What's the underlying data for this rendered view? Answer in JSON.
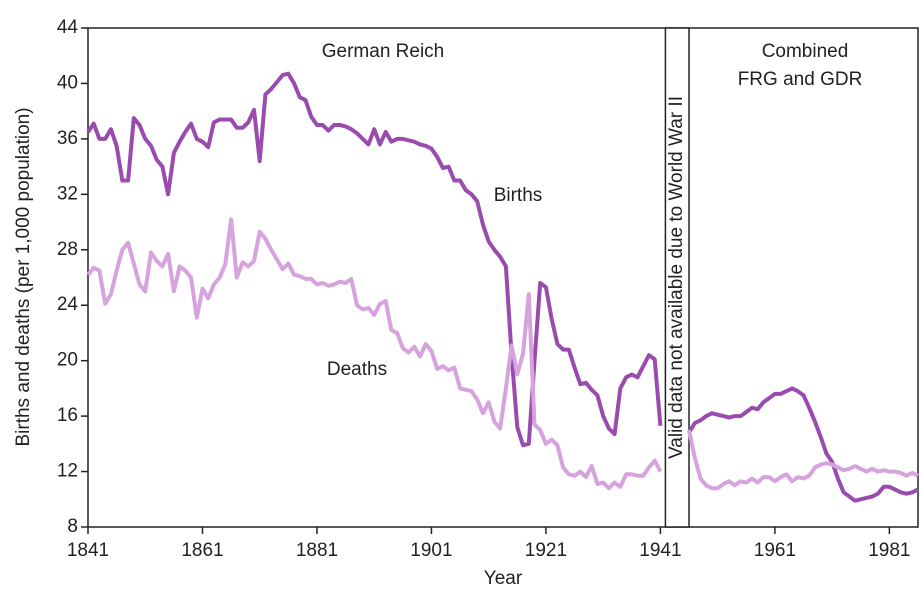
{
  "chart_data": {
    "type": "line",
    "xlabel": "Year",
    "ylabel": "Births and deaths (per 1,000 population)",
    "annotations": [
      "German Reich",
      "Combined",
      "FRG and GDR",
      "Births",
      "Deaths",
      "Valid data not available due to World War II"
    ],
    "x": [
      1841,
      1842,
      1843,
      1844,
      1845,
      1846,
      1847,
      1848,
      1849,
      1850,
      1851,
      1852,
      1853,
      1854,
      1855,
      1856,
      1857,
      1858,
      1859,
      1860,
      1861,
      1862,
      1863,
      1864,
      1865,
      1866,
      1867,
      1868,
      1869,
      1870,
      1871,
      1872,
      1873,
      1874,
      1875,
      1876,
      1877,
      1878,
      1879,
      1880,
      1881,
      1882,
      1883,
      1884,
      1885,
      1886,
      1887,
      1888,
      1889,
      1890,
      1891,
      1892,
      1893,
      1894,
      1895,
      1896,
      1897,
      1898,
      1899,
      1900,
      1901,
      1902,
      1903,
      1904,
      1905,
      1906,
      1907,
      1908,
      1909,
      1910,
      1911,
      1912,
      1913,
      1914,
      1915,
      1916,
      1917,
      1918,
      1919,
      1920,
      1921,
      1922,
      1923,
      1924,
      1925,
      1926,
      1927,
      1928,
      1929,
      1930,
      1931,
      1932,
      1933,
      1934,
      1935,
      1936,
      1937,
      1938,
      1939,
      1940,
      1941,
      1942,
      1943,
      1944,
      1945,
      1946,
      1947,
      1948,
      1949,
      1950,
      1951,
      1952,
      1953,
      1954,
      1955,
      1956,
      1957,
      1958,
      1959,
      1960,
      1961,
      1962,
      1963,
      1964,
      1965,
      1966,
      1967,
      1968,
      1969,
      1970,
      1971,
      1972,
      1973,
      1974,
      1975,
      1976,
      1977,
      1978,
      1979,
      1980,
      1981,
      1982,
      1983,
      1984,
      1985,
      1986
    ],
    "series": [
      {
        "name": "Births",
        "color": "#9a4cae",
        "values": [
          36.5,
          37.1,
          36,
          36,
          36.7,
          35.5,
          33,
          33,
          37.5,
          37,
          36,
          35.5,
          34.5,
          34,
          32,
          35,
          35.8,
          36.5,
          37.1,
          36,
          35.8,
          35.4,
          37.2,
          37.4,
          37.4,
          37.4,
          36.8,
          36.8,
          37.2,
          38.1,
          34.4,
          39.2,
          39.6,
          40.1,
          40.6,
          40.7,
          40,
          39,
          38.8,
          37.6,
          37,
          37,
          36.6,
          37,
          37,
          36.9,
          36.7,
          36.4,
          36,
          35.6,
          36.7,
          35.6,
          36.5,
          35.8,
          36,
          36,
          35.9,
          35.8,
          35.6,
          35.5,
          35.3,
          34.7,
          33.9,
          34,
          33,
          33,
          32.3,
          32,
          31.5,
          29.8,
          28.6,
          28,
          27.5,
          26.8,
          20.4,
          15.2,
          13.9,
          14,
          20,
          25.6,
          25.3,
          23,
          21.2,
          20.8,
          20.8,
          19.5,
          18.3,
          18.4,
          17.9,
          17.5,
          16,
          15.1,
          14.7,
          18,
          18.8,
          19,
          18.8,
          19.6,
          20.4,
          20.1,
          15.3,
          null,
          null,
          null,
          null,
          14.8,
          15.5,
          15.7,
          16,
          16.2,
          16.1,
          16,
          15.9,
          16,
          16,
          16.3,
          16.6,
          16.5,
          17,
          17.3,
          17.6,
          17.6,
          17.8,
          18,
          17.8,
          17.5,
          16.6,
          15.6,
          14.5,
          13.3,
          12.7,
          11.5,
          10.5,
          10.2,
          9.9,
          10,
          10.1,
          10.2,
          10.4,
          10.9,
          10.9,
          10.7,
          10.5,
          10.4,
          10.5,
          10.7
        ]
      },
      {
        "name": "Deaths",
        "color": "#d6a3de",
        "values": [
          26.2,
          26.7,
          26.5,
          24.1,
          24.8,
          26.5,
          28,
          28.5,
          27,
          25.5,
          25,
          27.8,
          27.2,
          26.8,
          27.7,
          25,
          26.8,
          26.5,
          26,
          23.1,
          25.2,
          24.5,
          25.5,
          26,
          27,
          30.2,
          26,
          27.1,
          26.8,
          27.2,
          29.3,
          28.8,
          28,
          27.3,
          26.6,
          27,
          26.2,
          26.1,
          25.9,
          25.9,
          25.5,
          25.6,
          25.4,
          25.5,
          25.7,
          25.6,
          25.9,
          24,
          23.7,
          23.8,
          23.3,
          24.1,
          24.3,
          22.2,
          22,
          20.9,
          20.6,
          21,
          20.3,
          21.2,
          20.7,
          19.4,
          19.6,
          19.3,
          19.5,
          18,
          17.9,
          17.8,
          17.2,
          16.2,
          17,
          15.6,
          15.1,
          18,
          21.1,
          19,
          20.5,
          24.8,
          15.4,
          15,
          14,
          14.3,
          13.9,
          12.3,
          11.8,
          11.7,
          12,
          11.6,
          12.4,
          11.1,
          11.2,
          10.8,
          11.2,
          10.9,
          11.8,
          11.8,
          11.7,
          11.7,
          12.3,
          12.8,
          12,
          null,
          null,
          null,
          null,
          15,
          13,
          11.5,
          11,
          10.8,
          10.8,
          11.1,
          11.3,
          11,
          11.3,
          11.2,
          11.5,
          11.2,
          11.6,
          11.6,
          11.3,
          11.6,
          11.8,
          11.3,
          11.6,
          11.5,
          11.7,
          12.3,
          12.5,
          12.6,
          12.5,
          12.3,
          12.1,
          12.2,
          12.4,
          12.2,
          12,
          12.2,
          12,
          12.1,
          12,
          12,
          11.9,
          11.7,
          11.9,
          11.7
        ]
      }
    ],
    "xlim": [
      1841,
      1986
    ],
    "xticks": [
      1841,
      1861,
      1881,
      1901,
      1921,
      1941,
      1961,
      1981
    ],
    "ylim": [
      8,
      44
    ],
    "yticks": [
      8,
      12,
      16,
      20,
      24,
      28,
      32,
      36,
      40,
      44
    ]
  }
}
